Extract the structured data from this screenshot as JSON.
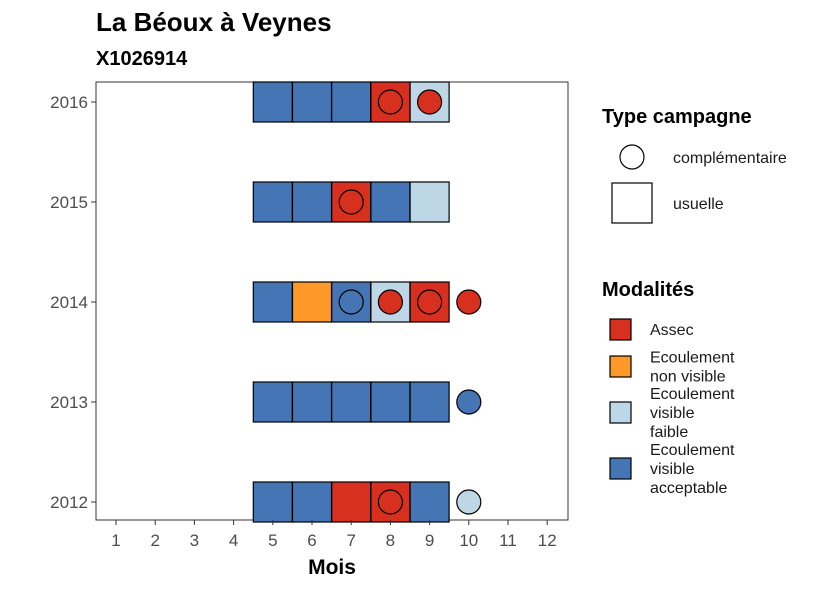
{
  "chart_data": {
    "type": "heatmap",
    "title": "La Béoux à Veynes",
    "subtitle": "X1026914",
    "xlabel": "Mois",
    "ylabel": "",
    "x_ticks": [
      1,
      2,
      3,
      4,
      5,
      6,
      7,
      8,
      9,
      10,
      11,
      12
    ],
    "y_ticks": [
      2012,
      2013,
      2014,
      2015,
      2016
    ],
    "xlim": [
      0.5,
      12.5
    ],
    "ylim": [
      2011.8,
      2016.2
    ],
    "grid": false,
    "legend_position": "right",
    "modalities": [
      {
        "key": "assec",
        "label": "Assec",
        "color": "#d7301f"
      },
      {
        "key": "ecoulement_non_visible",
        "label": "Ecoulement non visible",
        "color": "#fe9929"
      },
      {
        "key": "ecoulement_visible_faible",
        "label": "Ecoulement visible faible",
        "color": "#bdd7e7"
      },
      {
        "key": "ecoulement_visible_acceptable",
        "label": "Ecoulement visible acceptable",
        "color": "#4575b4"
      }
    ],
    "campaign_types": [
      {
        "key": "complementaire",
        "label": "complémentaire",
        "shape": "circle"
      },
      {
        "key": "usuelle",
        "label": "usuelle",
        "shape": "square"
      }
    ],
    "observations": [
      {
        "year": 2016,
        "month": 5,
        "type": "usuelle",
        "modalite": "ecoulement_visible_acceptable"
      },
      {
        "year": 2016,
        "month": 6,
        "type": "usuelle",
        "modalite": "ecoulement_visible_acceptable"
      },
      {
        "year": 2016,
        "month": 7,
        "type": "usuelle",
        "modalite": "ecoulement_visible_acceptable"
      },
      {
        "year": 2016,
        "month": 8,
        "type": "usuelle",
        "modalite": "assec"
      },
      {
        "year": 2016,
        "month": 9,
        "type": "usuelle",
        "modalite": "ecoulement_visible_faible"
      },
      {
        "year": 2016,
        "month": 8,
        "type": "complementaire",
        "modalite": "assec"
      },
      {
        "year": 2016,
        "month": 9,
        "type": "complementaire",
        "modalite": "assec"
      },
      {
        "year": 2015,
        "month": 5,
        "type": "usuelle",
        "modalite": "ecoulement_visible_acceptable"
      },
      {
        "year": 2015,
        "month": 6,
        "type": "usuelle",
        "modalite": "ecoulement_visible_acceptable"
      },
      {
        "year": 2015,
        "month": 7,
        "type": "usuelle",
        "modalite": "assec"
      },
      {
        "year": 2015,
        "month": 8,
        "type": "usuelle",
        "modalite": "ecoulement_visible_acceptable"
      },
      {
        "year": 2015,
        "month": 9,
        "type": "usuelle",
        "modalite": "ecoulement_visible_faible"
      },
      {
        "year": 2015,
        "month": 7,
        "type": "complementaire",
        "modalite": "assec"
      },
      {
        "year": 2014,
        "month": 5,
        "type": "usuelle",
        "modalite": "ecoulement_visible_acceptable"
      },
      {
        "year": 2014,
        "month": 6,
        "type": "usuelle",
        "modalite": "ecoulement_non_visible"
      },
      {
        "year": 2014,
        "month": 7,
        "type": "usuelle",
        "modalite": "ecoulement_visible_acceptable"
      },
      {
        "year": 2014,
        "month": 8,
        "type": "usuelle",
        "modalite": "ecoulement_visible_faible"
      },
      {
        "year": 2014,
        "month": 9,
        "type": "usuelle",
        "modalite": "assec"
      },
      {
        "year": 2014,
        "month": 7,
        "type": "complementaire",
        "modalite": "ecoulement_visible_acceptable"
      },
      {
        "year": 2014,
        "month": 8,
        "type": "complementaire",
        "modalite": "assec"
      },
      {
        "year": 2014,
        "month": 9,
        "type": "complementaire",
        "modalite": "assec"
      },
      {
        "year": 2014,
        "month": 10,
        "type": "complementaire",
        "modalite": "assec"
      },
      {
        "year": 2013,
        "month": 5,
        "type": "usuelle",
        "modalite": "ecoulement_visible_acceptable"
      },
      {
        "year": 2013,
        "month": 6,
        "type": "usuelle",
        "modalite": "ecoulement_visible_acceptable"
      },
      {
        "year": 2013,
        "month": 7,
        "type": "usuelle",
        "modalite": "ecoulement_visible_acceptable"
      },
      {
        "year": 2013,
        "month": 8,
        "type": "usuelle",
        "modalite": "ecoulement_visible_acceptable"
      },
      {
        "year": 2013,
        "month": 9,
        "type": "usuelle",
        "modalite": "ecoulement_visible_acceptable"
      },
      {
        "year": 2013,
        "month": 10,
        "type": "complementaire",
        "modalite": "ecoulement_visible_acceptable"
      },
      {
        "year": 2012,
        "month": 5,
        "type": "usuelle",
        "modalite": "ecoulement_visible_acceptable"
      },
      {
        "year": 2012,
        "month": 6,
        "type": "usuelle",
        "modalite": "ecoulement_visible_acceptable"
      },
      {
        "year": 2012,
        "month": 7,
        "type": "usuelle",
        "modalite": "assec"
      },
      {
        "year": 2012,
        "month": 8,
        "type": "usuelle",
        "modalite": "assec"
      },
      {
        "year": 2012,
        "month": 9,
        "type": "usuelle",
        "modalite": "ecoulement_visible_acceptable"
      },
      {
        "year": 2012,
        "month": 8,
        "type": "complementaire",
        "modalite": "assec"
      },
      {
        "year": 2012,
        "month": 10,
        "type": "complementaire",
        "modalite": "ecoulement_visible_faible"
      }
    ],
    "legend": {
      "type_title": "Type campagne",
      "modalite_title": "Modalités",
      "modalite_lines": [
        [
          "Assec"
        ],
        [
          "Ecoulement",
          "non visible"
        ],
        [
          "Ecoulement",
          "visible",
          "faible"
        ],
        [
          "Ecoulement",
          "visible",
          "acceptable"
        ]
      ]
    }
  }
}
